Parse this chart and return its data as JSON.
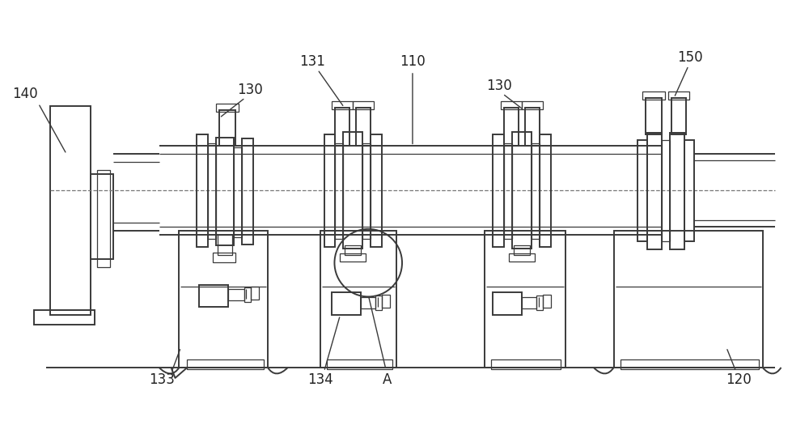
{
  "bg_color": "#ffffff",
  "lc": "#3a3a3a",
  "lc_dash": "#777777",
  "lw": 1.4,
  "lw_thin": 0.9,
  "lw_thick": 2.0,
  "figsize": [
    10.0,
    5.2
  ],
  "dpi": 100,
  "font_size": 12,
  "font_color": "#222222"
}
